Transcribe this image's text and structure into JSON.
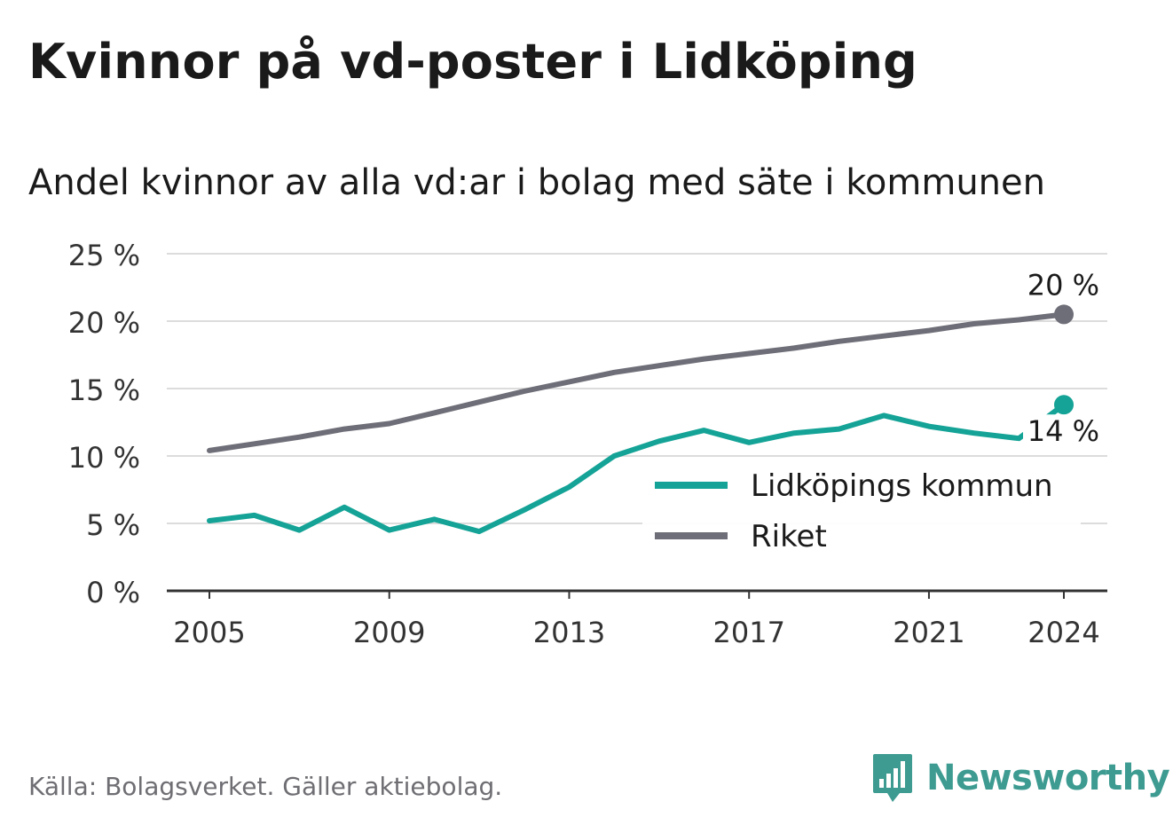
{
  "title": "Kvinnor på vd-poster i Lidköping",
  "subtitle": "Andel kvinnor av alla vd:ar i bolag med säte i kommunen",
  "source": "Källa: Bolagsverket. Gäller aktiebolag.",
  "brand": {
    "name": "Newsworthy",
    "color": "#3d9b91",
    "icon": "newsworthy-logo-icon"
  },
  "chart_data": {
    "type": "line",
    "x": [
      2005,
      2006,
      2007,
      2008,
      2009,
      2010,
      2011,
      2012,
      2013,
      2014,
      2015,
      2016,
      2017,
      2018,
      2019,
      2020,
      2021,
      2022,
      2023,
      2024
    ],
    "xticks": [
      2005,
      2009,
      2013,
      2017,
      2021,
      2024
    ],
    "xtick_labels": [
      "2005",
      "2009",
      "2013",
      "2017",
      "2021",
      "2024"
    ],
    "ylim": [
      0,
      25
    ],
    "yticks": [
      0,
      5,
      10,
      15,
      20,
      25
    ],
    "ytick_labels": [
      "0 %",
      "5 %",
      "10 %",
      "15 %",
      "20 %",
      "25 %"
    ],
    "grid": true,
    "legend_position": "lower-right",
    "series": [
      {
        "name": "Lidköpings kommun",
        "color": "#14a396",
        "values": [
          5.2,
          5.6,
          4.5,
          6.2,
          4.5,
          5.3,
          4.4,
          6.0,
          7.7,
          10.0,
          11.1,
          11.9,
          11.0,
          11.7,
          12.0,
          13.0,
          12.2,
          11.7,
          11.3,
          13.8
        ],
        "end_label": "14 %"
      },
      {
        "name": "Riket",
        "color": "#6e6e78",
        "values": [
          10.4,
          10.9,
          11.4,
          12.0,
          12.4,
          13.2,
          14.0,
          14.8,
          15.5,
          16.2,
          16.7,
          17.2,
          17.6,
          18.0,
          18.5,
          18.9,
          19.3,
          19.8,
          20.1,
          20.5
        ],
        "end_label": "20 %"
      }
    ]
  }
}
